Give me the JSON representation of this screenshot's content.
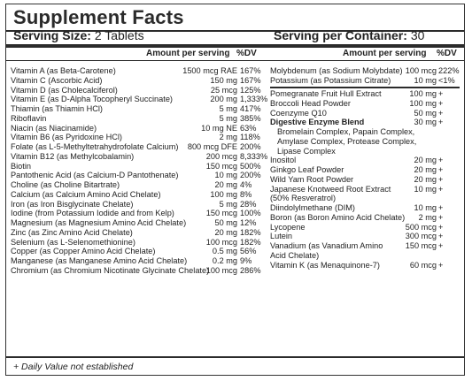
{
  "title": "Supplement Facts",
  "serving_size_label": "Serving Size:",
  "serving_size_value": "2 Tablets",
  "servings_per_container_label": "Serving per Container:",
  "servings_per_container_value": "30",
  "col_header_amount": "Amount per serving",
  "col_header_dv": "%DV",
  "left_rows": [
    {
      "name": "Vitamin A (as Beta-Carotene)",
      "amount": "1500 mcg RAE",
      "dv": "167%"
    },
    {
      "name": "Vitamin C (Ascorbic Acid)",
      "amount": "150 mg",
      "dv": "167%"
    },
    {
      "name": "Vitamin D (as Cholecalciferol)",
      "amount": "25 mcg",
      "dv": "125%"
    },
    {
      "name": "Vitamin E (as D-Alpha Tocopheryl Succinate)",
      "amount": "200 mg",
      "dv": "1,333%"
    },
    {
      "name": "Thiamin (as Thiamin HCl)",
      "amount": "5 mg",
      "dv": "417%"
    },
    {
      "name": "Riboflavin",
      "amount": "5 mg",
      "dv": "385%"
    },
    {
      "name": "Niacin (as Niacinamide)",
      "amount": "10 mg NE",
      "dv": "63%"
    },
    {
      "name": "Vitamin B6 (as Pyridoxine HCl)",
      "amount": "2 mg",
      "dv": "118%"
    },
    {
      "name": "Folate (as L-5-Methyltetrahydrofolate Calcium)",
      "amount": "800 mcg DFE",
      "dv": "200%"
    },
    {
      "name": "Vitamin B12 (as Methylcobalamin)",
      "amount": "200 mcg",
      "dv": "8,333%"
    },
    {
      "name": "Biotin",
      "amount": "150 mcg",
      "dv": "500%"
    },
    {
      "name": "Pantothenic Acid (as Calcium-D Pantothenate)",
      "amount": "10 mg",
      "dv": "200%"
    },
    {
      "name": "Choline (as Choline Bitartrate)",
      "amount": "20 mg",
      "dv": "4%"
    },
    {
      "name": "Calcium (as Calcium Amino Acid Chelate)",
      "amount": "100 mg",
      "dv": "8%"
    },
    {
      "name": "Iron (as Iron Bisglycinate Chelate)",
      "amount": "5 mg",
      "dv": "28%"
    },
    {
      "name": "Iodine (from Potassium Iodide and from Kelp)",
      "amount": "150 mcg",
      "dv": "100%"
    },
    {
      "name": "Magnesium (as Magnesium Amino Acid Chelate)",
      "amount": "50 mg",
      "dv": "12%"
    },
    {
      "name": "Zinc (as Zinc Amino Acid Chelate)",
      "amount": "20 mg",
      "dv": "182%"
    },
    {
      "name": "Selenium (as L-Selenomethionine)",
      "amount": "100 mcg",
      "dv": "182%"
    },
    {
      "name": "Copper (as Copper Amino Acid Chelate)",
      "amount": "0.5 mg",
      "dv": "56%"
    },
    {
      "name": "Manganese (as Manganese Amino Acid Chelate)",
      "amount": "0.2 mg",
      "dv": "9%"
    },
    {
      "name": "Chromium (as Chromium Nicotinate Glycinate Chelate)",
      "amount": "100 mcg",
      "dv": "286%"
    }
  ],
  "right_rows_top": [
    {
      "name": "Molybdenum (as Sodium Molybdate)",
      "amount": "100 mcg",
      "dv": "222%"
    },
    {
      "name": "Potassium (as Potassium Citrate)",
      "amount": "10 mg",
      "dv": "<1%"
    }
  ],
  "right_rows": [
    {
      "name": "Pomegranate Fruit Hull Extract",
      "amount": "100 mg",
      "dv": "+"
    },
    {
      "name": "Broccoli Head Powder",
      "amount": "100 mg",
      "dv": "+"
    },
    {
      "name": "Coenzyme Q10",
      "amount": "50 mg",
      "dv": "+"
    },
    {
      "name": "Digestive Enzyme Blend",
      "amount": "30 mg",
      "dv": "+",
      "bold": true
    },
    {
      "name": "Bromelain Complex, Papain Complex,",
      "amount": "",
      "dv": "",
      "indent": true
    },
    {
      "name": "Amylase Complex, Protease Complex,",
      "amount": "",
      "dv": "",
      "indent": true
    },
    {
      "name": "Lipase Complex",
      "amount": "",
      "dv": "",
      "indent": true
    },
    {
      "name": "Inositol",
      "amount": "20 mg",
      "dv": "+"
    },
    {
      "name": "Ginkgo Leaf Powder",
      "amount": "20 mg",
      "dv": "+"
    },
    {
      "name": "Wild Yam Root Powder",
      "amount": "20 mg",
      "dv": "+"
    },
    {
      "name": "Japanese Knotweed Root Extract",
      "amount": "10 mg",
      "dv": "+"
    },
    {
      "name": "(50% Resveratrol)",
      "amount": "",
      "dv": ""
    },
    {
      "name": "Diindolylmethane (DIM)",
      "amount": "10 mg",
      "dv": "+"
    },
    {
      "name": "Boron (as Boron Amino Acid Chelate)",
      "amount": "2 mg",
      "dv": "+"
    },
    {
      "name": "Lycopene",
      "amount": "500 mcg",
      "dv": "+"
    },
    {
      "name": "Lutein",
      "amount": "300 mcg",
      "dv": "+"
    },
    {
      "name": "Vanadium (as Vanadium Amino",
      "amount": "150 mcg",
      "dv": "+"
    },
    {
      "name": "Acid Chelate)",
      "amount": "",
      "dv": ""
    },
    {
      "name": "Vitamin K (as Menaquinone-7)",
      "amount": "60 mcg",
      "dv": "+"
    }
  ],
  "footnote": "+ Daily Value not established"
}
